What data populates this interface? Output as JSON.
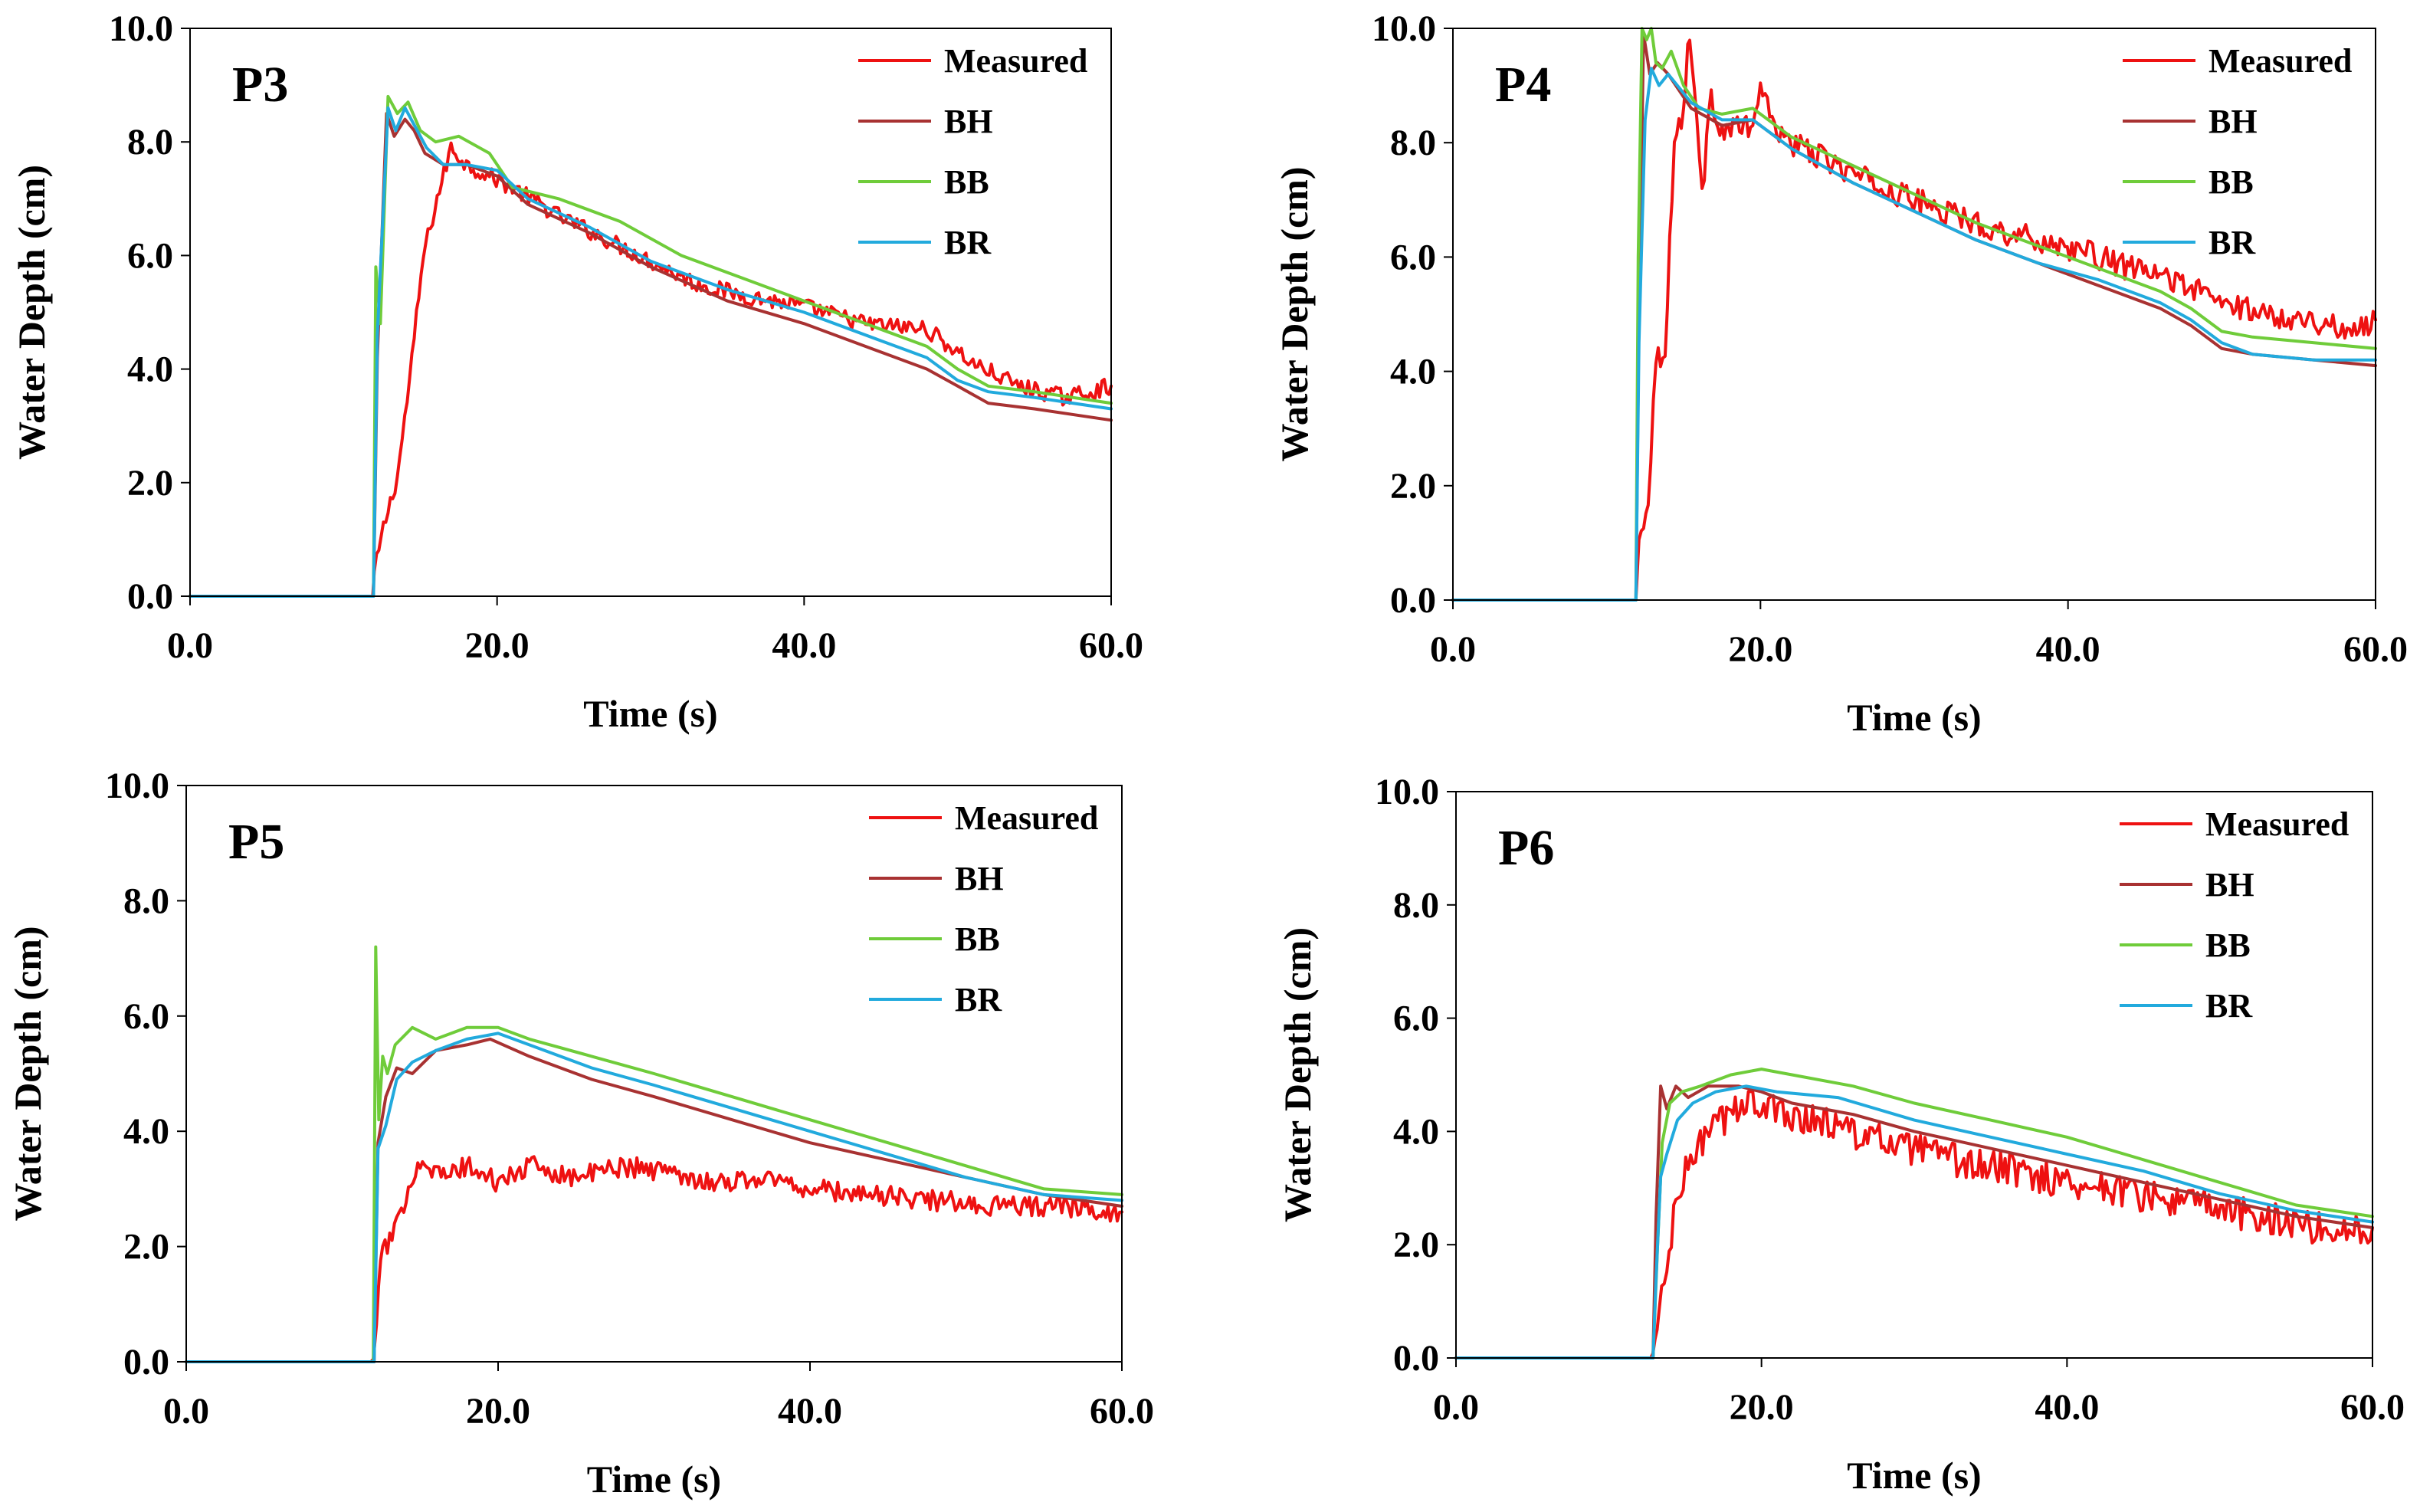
{
  "colors": {
    "Measured": "#ee1111",
    "BH": "#a83232",
    "BB": "#6fcc3a",
    "BR": "#22aadd"
  },
  "chart_data": [
    {
      "type": "line",
      "title": "P3",
      "xlabel": "Time (s)",
      "ylabel": "Water Depth (cm)",
      "xlim": [
        0,
        60
      ],
      "ylim": [
        0,
        10
      ],
      "xticks": [
        "0.0",
        "20.0",
        "40.0",
        "60.0"
      ],
      "yticks": [
        "0.0",
        "2.0",
        "4.0",
        "6.0",
        "8.0",
        "10.0"
      ],
      "legend": [
        "Measured",
        "BH",
        "BB",
        "BR"
      ],
      "series": [
        {
          "name": "Measured",
          "x": [
            0,
            11.9,
            12.0,
            12.6,
            13.5,
            14.3,
            15.2,
            16.1,
            17.0,
            18.0,
            19.5,
            21,
            24,
            27,
            30,
            33,
            36,
            40,
            44,
            48,
            51,
            54,
            57,
            60
          ],
          "y": [
            0,
            0,
            0.4,
            1.2,
            2.1,
            3.8,
            6.0,
            7.0,
            7.9,
            7.6,
            7.4,
            7.2,
            6.7,
            6.3,
            5.9,
            5.5,
            5.3,
            5.1,
            4.8,
            4.7,
            4.1,
            3.7,
            3.5,
            3.7
          ],
          "noise": 0.15
        },
        {
          "name": "BH",
          "x": [
            0,
            11.95,
            12.2,
            12.8,
            13.3,
            14.0,
            14.6,
            15.3,
            16.5,
            18,
            20,
            22,
            26,
            30,
            35,
            40,
            45,
            48,
            50,
            52,
            55,
            60
          ],
          "y": [
            0,
            0,
            4.2,
            8.5,
            8.1,
            8.4,
            8.2,
            7.8,
            7.6,
            7.6,
            7.4,
            6.9,
            6.4,
            5.8,
            5.2,
            4.8,
            4.3,
            4.0,
            3.7,
            3.4,
            3.3,
            3.1
          ]
        },
        {
          "name": "BB",
          "x": [
            0,
            11.95,
            12.1,
            12.4,
            12.9,
            13.5,
            14.2,
            15.0,
            16.0,
            17.5,
            19.5,
            21,
            24,
            28,
            32,
            36,
            40,
            44,
            48,
            50,
            52,
            55,
            60
          ],
          "y": [
            0,
            0,
            5.8,
            4.8,
            8.8,
            8.5,
            8.7,
            8.2,
            8.0,
            8.1,
            7.8,
            7.2,
            7.0,
            6.6,
            6.0,
            5.6,
            5.2,
            4.8,
            4.4,
            4.0,
            3.7,
            3.6,
            3.4
          ]
        },
        {
          "name": "BR",
          "x": [
            0,
            11.95,
            12.2,
            12.9,
            13.4,
            14.0,
            14.6,
            15.4,
            16.5,
            18,
            20,
            22,
            26,
            30,
            35,
            40,
            45,
            48,
            50,
            52,
            55,
            60
          ],
          "y": [
            0,
            0,
            4.6,
            8.6,
            8.2,
            8.6,
            8.3,
            7.9,
            7.6,
            7.6,
            7.5,
            7.0,
            6.5,
            5.9,
            5.4,
            5.0,
            4.5,
            4.2,
            3.8,
            3.6,
            3.5,
            3.3
          ]
        }
      ]
    },
    {
      "type": "line",
      "title": "P4",
      "xlabel": "Time (s)",
      "ylabel": "Water Depth (cm)",
      "xlim": [
        0,
        60
      ],
      "ylim": [
        0,
        10
      ],
      "xticks": [
        "0.0",
        "20.0",
        "40.0",
        "60.0"
      ],
      "yticks": [
        "0.0",
        "2.0",
        "4.0",
        "6.0",
        "8.0",
        "10.0"
      ],
      "legend": [
        "Measured",
        "BH",
        "BB",
        "BR"
      ],
      "series": [
        {
          "name": "Measured",
          "x": [
            0,
            11.9,
            12.1,
            12.7,
            13.2,
            13.8,
            14.4,
            15.0,
            15.4,
            15.7,
            16.2,
            16.8,
            17.5,
            18.5,
            19.5,
            20.0,
            20.6,
            22,
            25,
            28,
            31,
            35,
            38,
            41,
            44,
            47,
            50,
            53,
            56,
            58,
            60
          ],
          "y": [
            0,
            0,
            1.0,
            1.8,
            4.2,
            4.4,
            8.0,
            8.6,
            10.0,
            9.0,
            7.1,
            8.8,
            8.2,
            8.3,
            8.2,
            9.1,
            8.4,
            8.0,
            7.6,
            7.2,
            6.9,
            6.5,
            6.3,
            6.1,
            5.8,
            5.6,
            5.2,
            5.0,
            4.9,
            4.7,
            4.9
          ],
          "noise": 0.22
        },
        {
          "name": "BH",
          "x": [
            0,
            11.9,
            12.1,
            12.4,
            12.8,
            13.3,
            14.0,
            15.5,
            17.5,
            19.5,
            22,
            26,
            30,
            34,
            38,
            42,
            46,
            48,
            50,
            52,
            56,
            60
          ],
          "y": [
            0,
            0,
            5.0,
            9.9,
            9.2,
            9.4,
            9.2,
            8.6,
            8.3,
            8.4,
            7.9,
            7.3,
            6.8,
            6.3,
            5.9,
            5.5,
            5.1,
            4.8,
            4.4,
            4.3,
            4.2,
            4.1
          ]
        },
        {
          "name": "BB",
          "x": [
            0,
            11.9,
            12.05,
            12.3,
            12.6,
            12.9,
            13.2,
            13.6,
            14.2,
            15.0,
            16.0,
            17.5,
            19.5,
            22,
            26,
            30,
            34,
            38,
            42,
            46,
            48,
            50,
            52,
            56,
            60
          ],
          "y": [
            0,
            0,
            6.0,
            10.0,
            9.8,
            10.0,
            9.4,
            9.3,
            9.6,
            9.0,
            8.6,
            8.5,
            8.6,
            8.1,
            7.6,
            7.1,
            6.6,
            6.2,
            5.8,
            5.4,
            5.1,
            4.7,
            4.6,
            4.5,
            4.4
          ]
        },
        {
          "name": "BR",
          "x": [
            0,
            11.9,
            12.1,
            12.5,
            12.9,
            13.4,
            14.0,
            15.5,
            17.5,
            19.5,
            22,
            26,
            30,
            34,
            38,
            42,
            46,
            48,
            50,
            52,
            56,
            60
          ],
          "y": [
            0,
            0,
            4.5,
            8.4,
            9.3,
            9.0,
            9.2,
            8.7,
            8.4,
            8.4,
            7.9,
            7.3,
            6.8,
            6.3,
            5.9,
            5.6,
            5.2,
            4.9,
            4.5,
            4.3,
            4.2,
            4.2
          ]
        }
      ]
    },
    {
      "type": "line",
      "title": "P5",
      "xlabel": "Time (s)",
      "ylabel": "Water Depth (cm)",
      "xlim": [
        0,
        60
      ],
      "ylim": [
        0,
        10
      ],
      "xticks": [
        "0.0",
        "20.0",
        "40.0",
        "60.0"
      ],
      "yticks": [
        "0.0",
        "2.0",
        "4.0",
        "6.0",
        "8.0",
        "10.0"
      ],
      "legend": [
        "Measured",
        "BH",
        "BB",
        "BR"
      ],
      "series": [
        {
          "name": "Measured",
          "x": [
            0,
            12.0,
            12.2,
            12.6,
            13.2,
            13.8,
            14.4,
            15.0,
            16.5,
            18,
            20,
            22,
            25,
            28,
            31,
            34,
            37,
            40,
            44,
            48,
            52,
            56,
            60
          ],
          "y": [
            0,
            0,
            0.8,
            2.0,
            2.1,
            2.6,
            3.2,
            3.5,
            3.2,
            3.4,
            3.1,
            3.4,
            3.2,
            3.4,
            3.3,
            3.1,
            3.2,
            3.0,
            2.9,
            2.8,
            2.7,
            2.7,
            2.6
          ],
          "noise": 0.18
        },
        {
          "name": "BH",
          "x": [
            0,
            12.05,
            12.3,
            12.8,
            13.5,
            14.5,
            16,
            18,
            19.5,
            22,
            26,
            30,
            35,
            40,
            45,
            50,
            55,
            60
          ],
          "y": [
            0,
            0,
            3.8,
            4.6,
            5.1,
            5.0,
            5.4,
            5.5,
            5.6,
            5.3,
            4.9,
            4.6,
            4.2,
            3.8,
            3.5,
            3.2,
            2.9,
            2.7
          ]
        },
        {
          "name": "BB",
          "x": [
            0,
            12.0,
            12.15,
            12.35,
            12.6,
            12.9,
            13.4,
            14.5,
            16,
            18,
            20,
            22,
            26,
            30,
            35,
            40,
            45,
            50,
            55,
            60
          ],
          "y": [
            0,
            0,
            7.2,
            4.2,
            5.3,
            5.0,
            5.5,
            5.8,
            5.6,
            5.8,
            5.8,
            5.6,
            5.3,
            5.0,
            4.6,
            4.2,
            3.8,
            3.4,
            3.0,
            2.9
          ]
        },
        {
          "name": "BR",
          "x": [
            0,
            12.05,
            12.3,
            12.8,
            13.5,
            14.5,
            16,
            18,
            20,
            22,
            26,
            30,
            35,
            40,
            45,
            50,
            55,
            60
          ],
          "y": [
            0,
            0,
            3.7,
            4.1,
            4.9,
            5.2,
            5.4,
            5.6,
            5.7,
            5.5,
            5.1,
            4.8,
            4.4,
            4.0,
            3.6,
            3.2,
            2.9,
            2.8
          ]
        }
      ]
    },
    {
      "type": "line",
      "title": "P6",
      "xlabel": "Time (s)",
      "ylabel": "Water Depth (cm)",
      "xlim": [
        0,
        60
      ],
      "ylim": [
        0,
        10
      ],
      "xticks": [
        "0.0",
        "20.0",
        "40.0",
        "60.0"
      ],
      "yticks": [
        "0.0",
        "2.0",
        "4.0",
        "6.0",
        "8.0",
        "10.0"
      ],
      "legend": [
        "Measured",
        "BH",
        "BB",
        "BR"
      ],
      "series": [
        {
          "name": "Measured",
          "x": [
            0,
            12.9,
            13.3,
            13.8,
            14.4,
            15.2,
            16.0,
            17.0,
            18.0,
            19.0,
            20.0,
            22,
            25,
            28,
            31,
            34,
            37,
            40,
            43,
            46,
            49,
            52,
            55,
            58,
            60
          ],
          "y": [
            0,
            0,
            0.8,
            1.6,
            2.7,
            3.4,
            3.8,
            4.1,
            4.3,
            4.6,
            4.4,
            4.3,
            4.1,
            3.8,
            3.6,
            3.4,
            3.3,
            3.1,
            3.0,
            2.8,
            2.7,
            2.5,
            2.4,
            2.2,
            2.3
          ],
          "noise": 0.3
        },
        {
          "name": "BH",
          "x": [
            0,
            12.9,
            13.1,
            13.4,
            13.8,
            14.4,
            15.2,
            16.5,
            18.5,
            20,
            22,
            26,
            30,
            35,
            40,
            45,
            50,
            55,
            60
          ],
          "y": [
            0,
            0,
            2.5,
            4.8,
            4.4,
            4.8,
            4.6,
            4.8,
            4.8,
            4.7,
            4.5,
            4.3,
            4.0,
            3.7,
            3.4,
            3.1,
            2.8,
            2.5,
            2.3
          ]
        },
        {
          "name": "BB",
          "x": [
            0,
            12.9,
            13.2,
            13.5,
            14.0,
            14.8,
            16,
            18,
            20,
            22,
            26,
            30,
            35,
            40,
            45,
            50,
            55,
            60
          ],
          "y": [
            0,
            0,
            2.0,
            3.8,
            4.5,
            4.7,
            4.8,
            5.0,
            5.1,
            5.0,
            4.8,
            4.5,
            4.2,
            3.9,
            3.5,
            3.1,
            2.7,
            2.5
          ]
        },
        {
          "name": "BR",
          "x": [
            0,
            12.9,
            13.1,
            13.4,
            13.8,
            14.5,
            15.5,
            17,
            19,
            21,
            25,
            30,
            35,
            40,
            45,
            50,
            55,
            60
          ],
          "y": [
            0,
            0,
            1.4,
            3.2,
            3.6,
            4.2,
            4.5,
            4.7,
            4.8,
            4.7,
            4.6,
            4.2,
            3.9,
            3.6,
            3.3,
            2.9,
            2.6,
            2.4
          ]
        }
      ]
    }
  ]
}
